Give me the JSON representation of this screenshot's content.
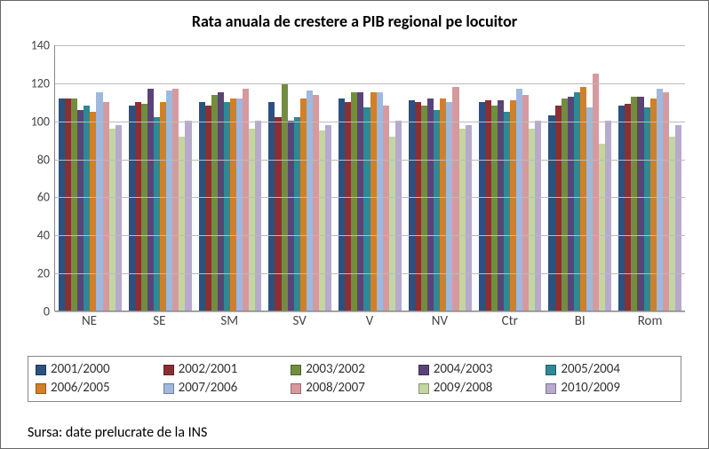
{
  "chart": {
    "type": "bar",
    "title": "Rata anuala de crestere a PIB regional pe locuitor",
    "title_fontsize": 18,
    "categories": [
      "NE",
      "SE",
      "SM",
      "SV",
      "V",
      "NV",
      "Ctr",
      "BI",
      "Rom"
    ],
    "series": [
      {
        "label": "2001/2000",
        "color": "#2b5180"
      },
      {
        "label": "2002/2001",
        "color": "#8a2f33"
      },
      {
        "label": "2003/2002",
        "color": "#728d3e"
      },
      {
        "label": "2004/2003",
        "color": "#5a4477"
      },
      {
        "label": "2005/2004",
        "color": "#2f8895"
      },
      {
        "label": "2006/2005",
        "color": "#d18027"
      },
      {
        "label": "2007/2006",
        "color": "#9fb8dd"
      },
      {
        "label": "2008/2007",
        "color": "#d69a9e"
      },
      {
        "label": "2009/2008",
        "color": "#c4d5a2"
      },
      {
        "label": "2010/2009",
        "color": "#b7aacd"
      }
    ],
    "values": [
      [
        112,
        112,
        112,
        106,
        108,
        105,
        115,
        110,
        96,
        98
      ],
      [
        108,
        110,
        109,
        117,
        102,
        110,
        116,
        117,
        92,
        100
      ],
      [
        110,
        108,
        114,
        115,
        110,
        112,
        112,
        117,
        96,
        100
      ],
      [
        110,
        102,
        120,
        100,
        102,
        112,
        116,
        114,
        95,
        98
      ],
      [
        112,
        110,
        115,
        115,
        107,
        115,
        115,
        108,
        92,
        100
      ],
      [
        111,
        110,
        108,
        112,
        106,
        112,
        110,
        118,
        96,
        98
      ],
      [
        110,
        111,
        108,
        111,
        105,
        111,
        117,
        114,
        96,
        100
      ],
      [
        103,
        108,
        112,
        113,
        115,
        118,
        107,
        125,
        88,
        100
      ],
      [
        108,
        109,
        113,
        113,
        107,
        112,
        117,
        115,
        92,
        98
      ]
    ],
    "ylim": [
      0,
      140
    ],
    "ytick_step": 20,
    "background_color": "#ffffff",
    "grid_color": "#bbbbbb",
    "axis_fontsize": 14,
    "legend_fontsize": 15
  },
  "source_text": "Sursa: date prelucrate de la INS"
}
